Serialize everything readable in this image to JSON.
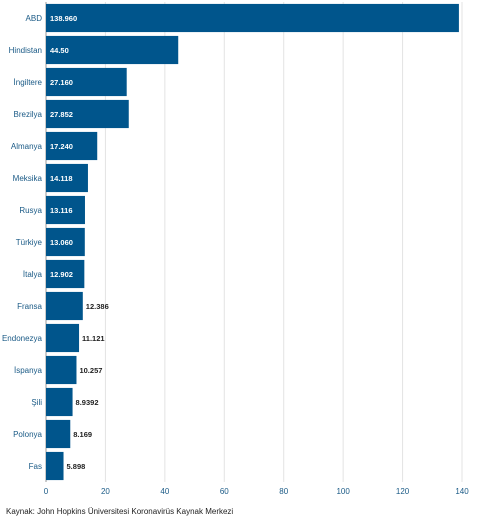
{
  "chart_data": {
    "type": "bar",
    "orientation": "horizontal",
    "categories": [
      "ABD",
      "Hindistan",
      "İngiltere",
      "Brezilya",
      "Almanya",
      "Meksika",
      "Rusya",
      "Türkiye",
      "İtalya",
      "Fransa",
      "Endonezya",
      "İspanya",
      "Şili",
      "Polonya",
      "Fas"
    ],
    "values": [
      138.96,
      44.5,
      27.16,
      27.852,
      17.24,
      14.118,
      13.116,
      13.06,
      12.902,
      12.386,
      11.121,
      10.257,
      8.9392,
      8.169,
      5.898
    ],
    "value_labels": [
      "138.960",
      "44.50",
      "27.160",
      "27.852",
      "17.240",
      "14.118",
      "13.116",
      "13.060",
      "12.902",
      "12.386",
      "11.121",
      "10.257",
      "8.9392",
      "8.169",
      "5.898"
    ],
    "x_ticks": [
      "0",
      "20",
      "40",
      "60",
      "80",
      "100",
      "120",
      "140"
    ],
    "xlim": [
      0,
      140
    ],
    "grid": true,
    "bar_color": "#00558c",
    "label_color": "#1a5a86"
  },
  "source": "Kaynak: John Hopkins Üniversitesi Koronavirüs Kaynak Merkezi"
}
